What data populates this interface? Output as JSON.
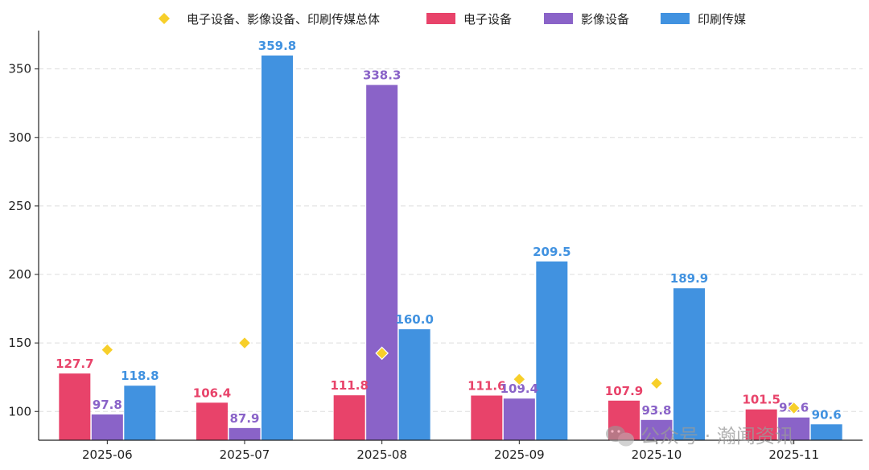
{
  "chart_data": {
    "type": "bar",
    "categories": [
      "2025-06",
      "2025-07",
      "2025-08",
      "2025-09",
      "2025-10",
      "2025-11"
    ],
    "series": [
      {
        "name": "电子设备",
        "kind": "bar",
        "color": "#e8436a",
        "values": [
          127.7,
          106.4,
          111.8,
          111.6,
          107.9,
          101.5
        ],
        "labels": [
          "127.7",
          "106.4",
          "111.8",
          "111.6",
          "107.9",
          "101.5"
        ]
      },
      {
        "name": "影像设备",
        "kind": "bar",
        "color": "#8a63c8",
        "values": [
          97.8,
          87.9,
          338.3,
          109.4,
          93.8,
          95.6
        ],
        "labels": [
          "97.8",
          "87.9",
          "338.3",
          "109.4",
          "93.8",
          "95.6"
        ]
      },
      {
        "name": "印刷传媒",
        "kind": "bar",
        "color": "#4192e0",
        "values": [
          118.8,
          359.8,
          160.0,
          209.5,
          189.9,
          90.6
        ],
        "labels": [
          "118.8",
          "359.8",
          "160.0",
          "209.5",
          "189.9",
          "90.6"
        ]
      },
      {
        "name": "电子设备、影像设备、印刷传媒总体",
        "kind": "marker",
        "marker": "diamond",
        "color": "#f7cf2a",
        "values": [
          145,
          150,
          142.5,
          123.5,
          120.5,
          102.5
        ]
      }
    ],
    "legend_order": [
      "电子设备、影像设备、印刷传媒总体",
      "电子设备",
      "影像设备",
      "印刷传媒"
    ],
    "legend_position": "top",
    "yticks": [
      100,
      150,
      200,
      250,
      300,
      350
    ],
    "ylim": [
      79,
      378
    ],
    "grid": true,
    "title": "",
    "xlabel": "",
    "ylabel": ""
  },
  "watermark": {
    "text": "公众号 · 瀚闻资讯",
    "icon": "wechat-icon"
  }
}
